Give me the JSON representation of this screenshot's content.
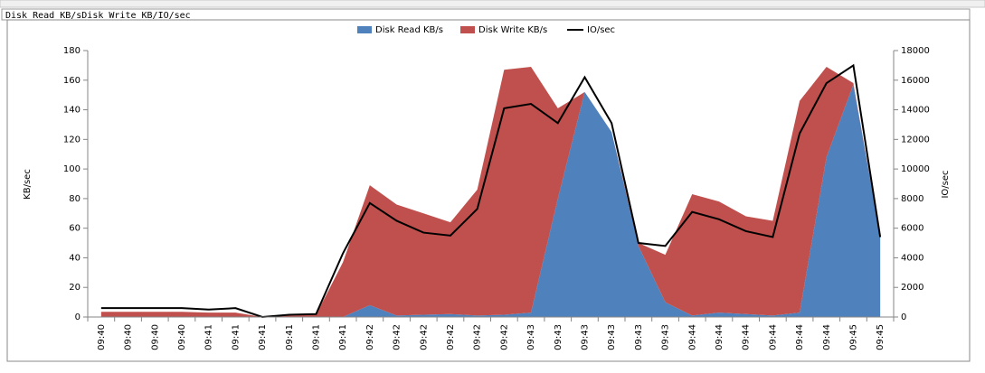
{
  "sheet": {
    "cell_text": "Disk Read KB/sDisk Write KB/IO/sec"
  },
  "chart_data": {
    "type": "area",
    "stacked": true,
    "y_label": "KB/sec",
    "y2_label": "IO/sec",
    "categories": [
      "09:40",
      "09:40",
      "09:40",
      "09:40",
      "09:41",
      "09:41",
      "09:41",
      "09:41",
      "09:41",
      "09:41",
      "09:42",
      "09:42",
      "09:42",
      "09:42",
      "09:42",
      "09:42",
      "09:43",
      "09:43",
      "09:43",
      "09:43",
      "09:43",
      "09:43",
      "09:44",
      "09:44",
      "09:44",
      "09:44",
      "09:44",
      "09:44",
      "09:45",
      "09:45"
    ],
    "series": [
      {
        "name": "Disk Read KB/s",
        "color": "#4f81bd",
        "values": [
          0,
          0,
          0,
          0,
          0,
          0,
          0,
          0,
          0,
          0,
          8,
          1,
          1.5,
          2,
          1,
          1.5,
          3,
          80,
          152,
          125,
          48,
          10,
          1,
          3,
          2,
          1,
          3,
          108,
          157,
          55
        ]
      },
      {
        "name": "Disk Write KB/s",
        "color": "#c0504d",
        "values": [
          3.5,
          3.5,
          3.5,
          3.5,
          3,
          3,
          0,
          1,
          1.5,
          37,
          81,
          75,
          68.5,
          62,
          85,
          165.5,
          166,
          61,
          0,
          0,
          2,
          32,
          82,
          75,
          66,
          64,
          143,
          61,
          1,
          0
        ]
      },
      {
        "name": "IO/sec",
        "color": "#000000",
        "type": "line",
        "axis": "y2",
        "values": [
          600,
          600,
          600,
          600,
          500,
          600,
          0,
          150,
          200,
          4300,
          7700,
          6500,
          5700,
          5500,
          7300,
          14100,
          14400,
          13100,
          16200,
          13100,
          5000,
          4800,
          7100,
          6600,
          5800,
          5400,
          12400,
          15800,
          17000,
          5400
        ]
      }
    ],
    "ylim": [
      0,
      180
    ],
    "yticks": [
      0,
      20,
      40,
      60,
      80,
      100,
      120,
      140,
      160,
      180
    ],
    "y2lim": [
      0,
      18000
    ],
    "y2ticks": [
      0,
      2000,
      4000,
      6000,
      8000,
      10000,
      12000,
      14000,
      16000,
      18000
    ],
    "legend": "top"
  }
}
